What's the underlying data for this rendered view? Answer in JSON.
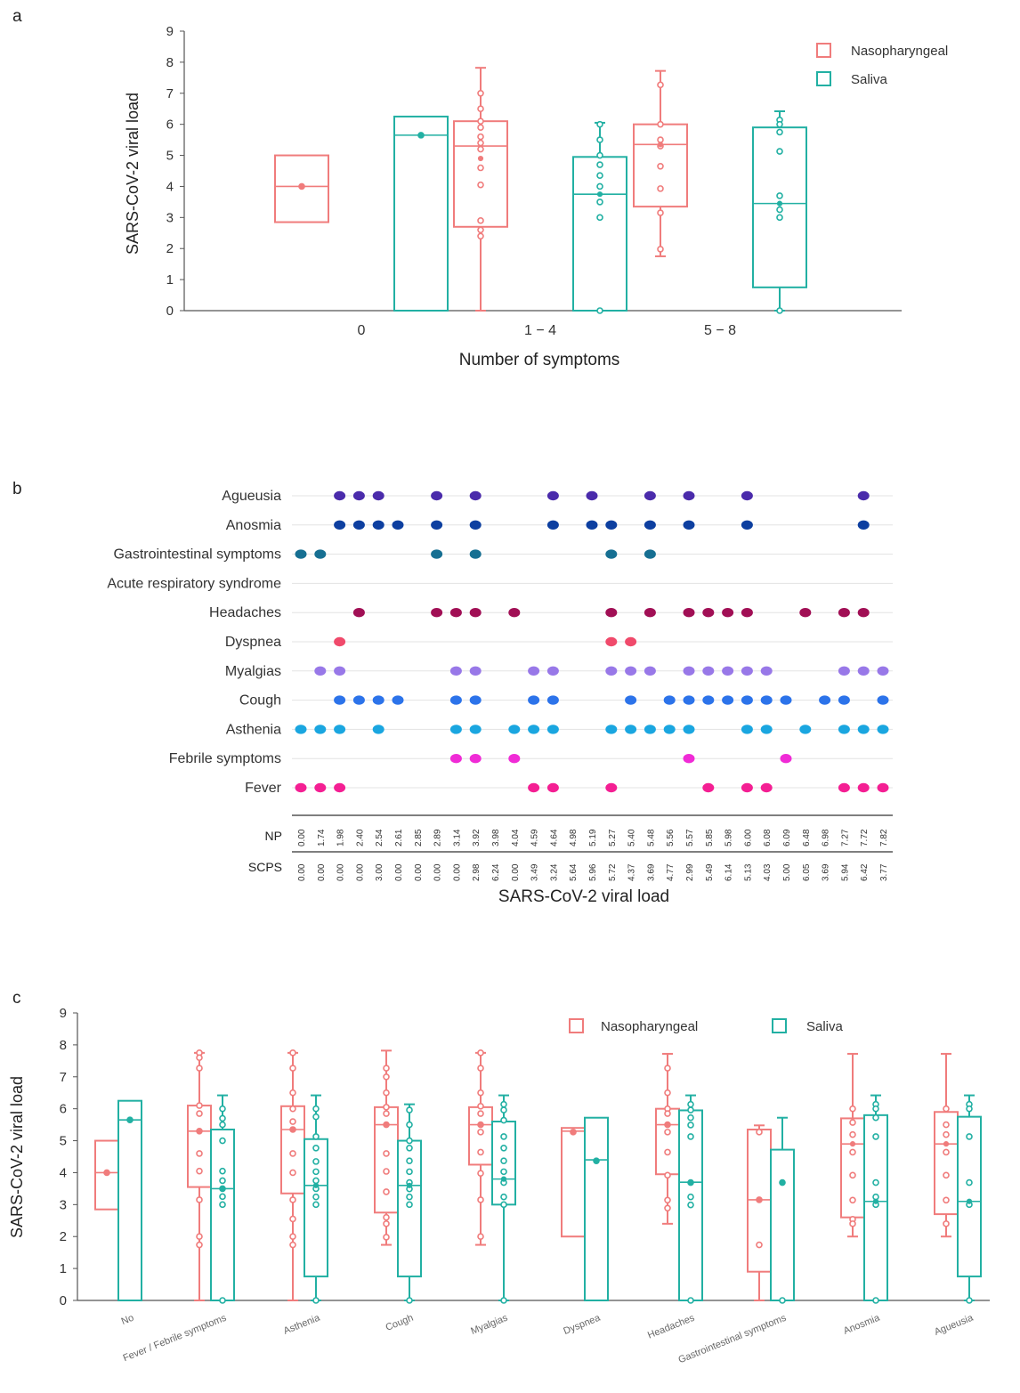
{
  "colors": {
    "nasopharyngeal": "#f07c7c",
    "saliva": "#22b0a3",
    "axis": "#555555",
    "grid": "#e3e3e3",
    "agueusia": "#4a2bab",
    "anosmia": "#0d3fa0",
    "gastro": "#166f92",
    "acute": "#1a7fb8",
    "headaches": "#a10f55",
    "dyspnea": "#f04a6b",
    "myalgias": "#9878e8",
    "cough": "#2c73ea",
    "asthenia": "#1aa6e0",
    "febrile": "#f02bd6",
    "fever": "#f41f93"
  },
  "chart_data": [
    {
      "panel": "a",
      "type": "box",
      "title": "",
      "xlabel": "Number of symptoms",
      "ylabel": "SARS-CoV-2 viral load",
      "ylim": [
        0,
        9
      ],
      "yticks": [
        "0",
        "1",
        "2",
        "3",
        "4",
        "5",
        "6",
        "7",
        "8",
        "9"
      ],
      "categories": [
        "0",
        "1 − 4",
        "5 − 8"
      ],
      "legend": [
        "Nasopharyngeal",
        "Saliva"
      ],
      "legend_position": "top-right",
      "boxes": [
        {
          "cat": 0,
          "series": "Nasopharyngeal",
          "q1": 2.85,
          "median": 4.0,
          "q3": 5.0,
          "wlo": null,
          "whi": null,
          "points": [
            4.0
          ],
          "mean": 4.0
        },
        {
          "cat": 0,
          "series": "Saliva",
          "q1": 0,
          "median": 5.65,
          "q3": 6.25,
          "wlo": null,
          "whi": null,
          "points": [
            5.65
          ],
          "mean": 5.65
        },
        {
          "cat": 1,
          "series": "Nasopharyngeal",
          "q1": 2.7,
          "median": 5.3,
          "q3": 6.1,
          "wlo": 0,
          "whi": 7.82,
          "points": [
            7.0,
            6.5,
            6.1,
            5.9,
            5.6,
            5.4,
            5.2,
            4.6,
            4.05,
            2.9,
            2.6,
            2.4
          ],
          "mean": 4.9
        },
        {
          "cat": 1,
          "series": "Saliva",
          "q1": 0,
          "median": 3.75,
          "q3": 4.95,
          "wlo": 0,
          "whi": 6.05,
          "points": [
            6.0,
            5.5,
            5.0,
            4.7,
            4.35,
            4.0,
            3.5,
            3.0,
            0
          ],
          "mean": 3.75
        },
        {
          "cat": 2,
          "series": "Nasopharyngeal",
          "q1": 3.35,
          "median": 5.35,
          "q3": 6.0,
          "wlo": 1.75,
          "whi": 7.72,
          "points": [
            7.27,
            6.0,
            5.5,
            5.3,
            4.65,
            3.93,
            3.15,
            1.98
          ],
          "mean": 5.35
        },
        {
          "cat": 2,
          "series": "Saliva",
          "q1": 0.75,
          "median": 3.45,
          "q3": 5.9,
          "wlo": 0,
          "whi": 6.42,
          "points": [
            6.14,
            6.0,
            5.75,
            5.13,
            3.7,
            3.25,
            3.0,
            0
          ],
          "mean": 3.45
        }
      ]
    },
    {
      "panel": "b",
      "type": "scatter",
      "xlabel": "SARS-CoV-2 viral load",
      "row_label_np": "NP",
      "row_label_scps": "SCPS",
      "symptoms": [
        "Agueusia",
        "Anosmia",
        "Gastrointestinal symptoms",
        "Acute respiratory syndrome",
        "Headaches",
        "Dyspnea",
        "Myalgias",
        "Cough",
        "Asthenia",
        "Febrile symptoms",
        "Fever"
      ],
      "symptom_colors": [
        "agueusia",
        "anosmia",
        "gastro",
        "acute",
        "headaches",
        "dyspnea",
        "myalgias",
        "cough",
        "asthenia",
        "febrile",
        "fever"
      ],
      "np_values": [
        "0.00",
        "1.74",
        "1.98",
        "2.40",
        "2.54",
        "2.61",
        "2.85",
        "2.89",
        "3.14",
        "3.92",
        "3.98",
        "4.04",
        "4.59",
        "4.64",
        "4.98",
        "5.19",
        "5.27",
        "5.40",
        "5.48",
        "5.56",
        "5.57",
        "5.85",
        "5.98",
        "6.00",
        "6.08",
        "6.09",
        "6.48",
        "6.98",
        "7.27",
        "7.72",
        "7.82"
      ],
      "scps_values": [
        "0.00",
        "0.00",
        "0.00",
        "0.00",
        "3.00",
        "0.00",
        "0.00",
        "0.00",
        "0.00",
        "2.98",
        "6.24",
        "0.00",
        "3.49",
        "3.24",
        "5.64",
        "5.96",
        "5.72",
        "4.37",
        "3.69",
        "4.77",
        "2.99",
        "5.49",
        "6.14",
        "5.13",
        "4.03",
        "5.00",
        "6.05",
        "3.69",
        "5.94",
        "6.42",
        "3.77"
      ],
      "presence": [
        [
          2,
          3,
          4,
          7,
          9,
          13,
          15,
          18,
          20,
          23,
          29
        ],
        [
          2,
          3,
          4,
          5,
          7,
          9,
          13,
          15,
          16,
          18,
          20,
          23,
          29
        ],
        [
          0,
          1,
          7,
          9,
          16,
          18
        ],
        [],
        [
          3,
          7,
          8,
          9,
          11,
          16,
          18,
          20,
          21,
          22,
          23,
          26,
          28,
          29
        ],
        [
          2,
          16,
          17
        ],
        [
          1,
          2,
          8,
          9,
          12,
          13,
          16,
          17,
          18,
          20,
          21,
          22,
          23,
          24,
          28,
          29,
          30
        ],
        [
          2,
          3,
          4,
          5,
          8,
          9,
          12,
          13,
          17,
          19,
          20,
          21,
          22,
          23,
          24,
          25,
          27,
          28,
          30
        ],
        [
          0,
          1,
          2,
          4,
          8,
          9,
          11,
          12,
          13,
          16,
          17,
          18,
          19,
          20,
          23,
          24,
          26,
          28,
          29,
          30
        ],
        [
          8,
          9,
          11,
          20,
          25
        ],
        [
          0,
          1,
          2,
          12,
          13,
          16,
          21,
          23,
          24,
          28,
          29,
          30
        ]
      ]
    },
    {
      "panel": "c",
      "type": "box",
      "xlabel": "",
      "ylabel": "SARS-CoV-2 viral load",
      "ylim": [
        0,
        9
      ],
      "yticks": [
        "0",
        "1",
        "2",
        "3",
        "4",
        "5",
        "6",
        "7",
        "8",
        "9"
      ],
      "categories": [
        "No",
        "Fever / Febrile symptoms",
        "Asthenia",
        "Cough",
        "Myalgias",
        "Dyspnea",
        "Headaches",
        "Gastrointestinal symptoms",
        "Anosmia",
        "Agueusia"
      ],
      "legend": [
        "Nasopharyngeal",
        "Saliva"
      ],
      "legend_position": "top-right",
      "boxes": [
        {
          "cat": 0,
          "series": "Nasopharyngeal",
          "q1": 2.85,
          "median": 4.0,
          "q3": 5.0,
          "wlo": null,
          "whi": null,
          "points": [
            4.0
          ],
          "mean": 4.0
        },
        {
          "cat": 0,
          "series": "Saliva",
          "q1": 0,
          "median": 5.65,
          "q3": 6.25,
          "wlo": null,
          "whi": null,
          "points": [
            5.65
          ],
          "mean": 5.65
        },
        {
          "cat": 1,
          "series": "Nasopharyngeal",
          "q1": 3.55,
          "median": 5.3,
          "q3": 6.1,
          "wlo": 0,
          "whi": 7.75,
          "points": [
            7.75,
            7.6,
            7.27,
            6.1,
            5.85,
            5.3,
            4.6,
            4.05,
            3.15,
            2.0,
            1.74
          ],
          "mean": 5.3
        },
        {
          "cat": 1,
          "series": "Saliva",
          "q1": 0,
          "median": 3.5,
          "q3": 5.35,
          "wlo": 0,
          "whi": 6.42,
          "points": [
            6.0,
            5.7,
            5.5,
            5.0,
            4.05,
            3.75,
            3.5,
            3.25,
            3.0,
            0
          ],
          "mean": 3.5
        },
        {
          "cat": 2,
          "series": "Nasopharyngeal",
          "q1": 3.35,
          "median": 5.35,
          "q3": 6.08,
          "wlo": 0,
          "whi": 7.75,
          "points": [
            7.75,
            7.27,
            6.5,
            6.0,
            5.6,
            5.35,
            4.6,
            4.0,
            3.15,
            2.55,
            2.0,
            1.74
          ],
          "mean": 5.35
        },
        {
          "cat": 2,
          "series": "Saliva",
          "q1": 0.75,
          "median": 3.6,
          "q3": 5.05,
          "wlo": 0,
          "whi": 6.42,
          "points": [
            6.0,
            5.75,
            5.13,
            4.77,
            4.35,
            4.03,
            3.75,
            3.5,
            3.24,
            3.0,
            0
          ],
          "mean": 3.6
        },
        {
          "cat": 3,
          "series": "Nasopharyngeal",
          "q1": 2.75,
          "median": 5.5,
          "q3": 6.05,
          "wlo": 1.74,
          "whi": 7.82,
          "points": [
            7.27,
            7.0,
            6.5,
            6.05,
            5.85,
            5.5,
            4.6,
            4.04,
            3.4,
            2.6,
            2.4,
            1.98
          ],
          "mean": 5.5
        },
        {
          "cat": 3,
          "series": "Saliva",
          "q1": 0.75,
          "median": 3.6,
          "q3": 5.0,
          "wlo": 0,
          "whi": 6.14,
          "points": [
            5.96,
            5.5,
            5.0,
            4.77,
            4.37,
            4.03,
            3.69,
            3.49,
            3.24,
            3.0,
            0
          ],
          "mean": 3.6
        },
        {
          "cat": 4,
          "series": "Nasopharyngeal",
          "q1": 4.25,
          "median": 5.5,
          "q3": 6.05,
          "wlo": 1.74,
          "whi": 7.75,
          "points": [
            7.75,
            7.27,
            6.5,
            6.08,
            5.85,
            5.5,
            5.27,
            4.64,
            3.98,
            3.15,
            2.0
          ],
          "mean": 5.5
        },
        {
          "cat": 4,
          "series": "Saliva",
          "q1": 3.0,
          "median": 3.8,
          "q3": 5.6,
          "wlo": 0,
          "whi": 6.42,
          "points": [
            6.14,
            5.96,
            5.64,
            5.13,
            4.77,
            4.37,
            4.03,
            3.69,
            3.24,
            3.0,
            0
          ],
          "mean": 3.8
        },
        {
          "cat": 5,
          "series": "Nasopharyngeal",
          "q1": 2.0,
          "median": 5.3,
          "q3": 5.4,
          "wlo": null,
          "whi": null,
          "points": [
            5.27
          ],
          "mean": 5.27
        },
        {
          "cat": 5,
          "series": "Saliva",
          "q1": 0,
          "median": 4.4,
          "q3": 5.72,
          "wlo": null,
          "whi": null,
          "points": [
            4.37
          ],
          "mean": 4.37
        },
        {
          "cat": 6,
          "series": "Nasopharyngeal",
          "q1": 3.95,
          "median": 5.5,
          "q3": 6.0,
          "wlo": 2.4,
          "whi": 7.72,
          "points": [
            7.27,
            6.5,
            6.0,
            5.85,
            5.5,
            5.27,
            4.64,
            3.92,
            3.14,
            2.89
          ],
          "mean": 5.5
        },
        {
          "cat": 6,
          "series": "Saliva",
          "q1": 0,
          "median": 3.7,
          "q3": 5.95,
          "wlo": 0,
          "whi": 6.42,
          "points": [
            6.14,
            5.96,
            5.72,
            5.49,
            5.13,
            3.69,
            3.24,
            2.99,
            0
          ],
          "mean": 3.7
        },
        {
          "cat": 7,
          "series": "Nasopharyngeal",
          "q1": 0.9,
          "median": 3.15,
          "q3": 5.35,
          "wlo": 0,
          "whi": 5.48,
          "points": [
            5.27,
            3.15,
            1.74
          ],
          "mean": 3.15
        },
        {
          "cat": 7,
          "series": "Saliva",
          "q1": 0,
          "median": null,
          "q3": 4.72,
          "wlo": 0,
          "whi": 5.72,
          "points": [
            3.69,
            0
          ],
          "mean": 3.69
        },
        {
          "cat": 8,
          "series": "Nasopharyngeal",
          "q1": 2.6,
          "median": 4.9,
          "q3": 5.7,
          "wlo": 2.0,
          "whi": 7.72,
          "points": [
            6.0,
            5.57,
            5.19,
            4.64,
            3.92,
            3.14,
            2.54,
            2.4
          ],
          "mean": 4.9
        },
        {
          "cat": 8,
          "series": "Saliva",
          "q1": 0,
          "median": 3.1,
          "q3": 5.8,
          "wlo": 0,
          "whi": 6.42,
          "points": [
            6.14,
            6.0,
            5.72,
            5.13,
            3.69,
            3.24,
            3.0,
            0
          ],
          "mean": 3.1
        },
        {
          "cat": 9,
          "series": "Nasopharyngeal",
          "q1": 2.7,
          "median": 4.9,
          "q3": 5.9,
          "wlo": 2.0,
          "whi": 7.72,
          "points": [
            6.0,
            5.5,
            5.19,
            4.64,
            3.92,
            3.14,
            2.4
          ],
          "mean": 4.9
        },
        {
          "cat": 9,
          "series": "Saliva",
          "q1": 0.75,
          "median": 3.1,
          "q3": 5.75,
          "wlo": 0,
          "whi": 6.42,
          "points": [
            6.14,
            6.0,
            5.13,
            3.69,
            3.0,
            0
          ],
          "mean": 3.1
        }
      ]
    }
  ]
}
